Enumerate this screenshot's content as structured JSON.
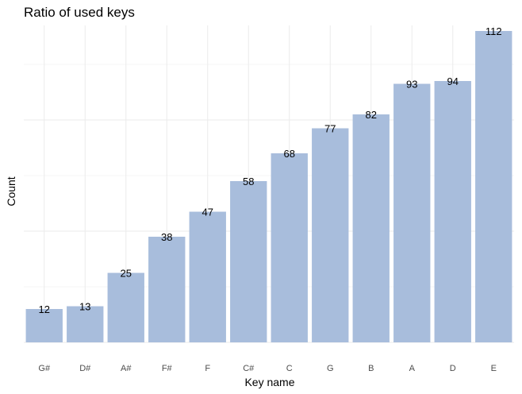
{
  "chart_data": {
    "type": "bar",
    "title": "Ratio of used keys",
    "xlabel": "Key name",
    "ylabel": "Count",
    "categories": [
      "G#",
      "D#",
      "A#",
      "F#",
      "F",
      "C#",
      "C",
      "G",
      "B",
      "A",
      "D",
      "E"
    ],
    "values": [
      12,
      13,
      25,
      38,
      47,
      58,
      68,
      77,
      82,
      93,
      94,
      112
    ],
    "data_labels": [
      "12",
      "13",
      "25",
      "38",
      "47",
      "58",
      "68",
      "77",
      "82",
      "93",
      "94",
      "112"
    ],
    "ylim": [
      0,
      114
    ],
    "grid": true,
    "y_tick_labels_shown": false,
    "bar_color": "#a8bddc",
    "legend": "none"
  }
}
